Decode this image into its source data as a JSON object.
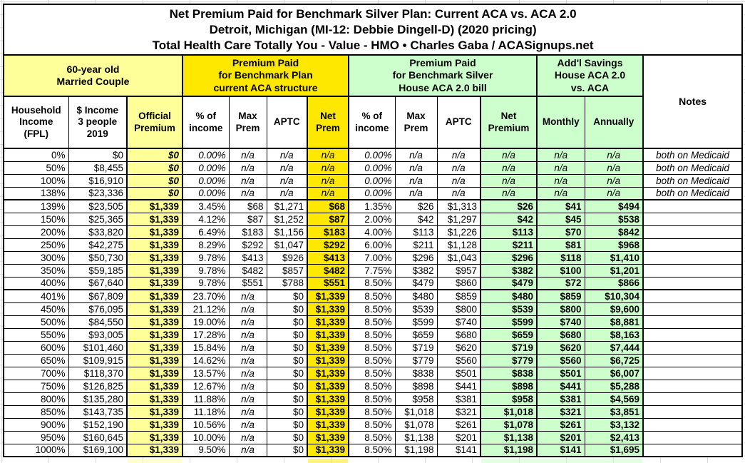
{
  "colors": {
    "pale_yellow": "#ffff99",
    "bright_yellow": "#ffe800",
    "light_green": "#ccffcc"
  },
  "chart_data": {
    "type": "table",
    "title": "Net Premium Paid for Benchmark Silver Plan: Current ACA vs. ACA 2.0",
    "subtitle": "Detroit, Michigan (MI-12: Debbie Dingell-D) (2020 pricing)",
    "source": "Total Health Care Totally You - Value - HMO • Charles Gaba / ACASignups.net",
    "column_groups": [
      "60-year old\nMarried Couple",
      "Premium Paid\nfor Benchmark Plan\ncurrent ACA structure",
      "Premium Paid\nfor Benchmark Silver\nHouse ACA 2.0 bill",
      "Add'l Savings\nHouse ACA 2.0\nvs. ACA"
    ],
    "columns": [
      "Household\nIncome\n(FPL)",
      "$ Income\n3 people\n2019",
      "Official\nPremium",
      "% of\nincome",
      "Max\nPrem",
      "APTC",
      "Net\nPrem",
      "% of\nincome",
      "Max\nPrem",
      "APTC",
      "Net\nPremium",
      "Monthly",
      "Annually",
      "Notes"
    ],
    "rows": [
      [
        "0%",
        "$0",
        "$0",
        "0.00%",
        "n/a",
        "n/a",
        "n/a",
        "0.00%",
        "n/a",
        "n/a",
        "n/a",
        "n/a",
        "n/a",
        "both on Medicaid"
      ],
      [
        "50%",
        "$8,455",
        "$0",
        "0.00%",
        "n/a",
        "n/a",
        "n/a",
        "0.00%",
        "n/a",
        "n/a",
        "n/a",
        "n/a",
        "n/a",
        "both on Medicaid"
      ],
      [
        "100%",
        "$16,910",
        "$0",
        "0.00%",
        "n/a",
        "n/a",
        "n/a",
        "0.00%",
        "n/a",
        "n/a",
        "n/a",
        "n/a",
        "n/a",
        "both on Medicaid"
      ],
      [
        "138%",
        "$23,336",
        "$0",
        "0.00%",
        "n/a",
        "n/a",
        "n/a",
        "0.00%",
        "n/a",
        "n/a",
        "n/a",
        "n/a",
        "n/a",
        "both on Medicaid"
      ],
      [
        "139%",
        "$23,505",
        "$1,339",
        "3.45%",
        "$68",
        "$1,271",
        "$68",
        "1.35%",
        "$26",
        "$1,313",
        "$26",
        "$41",
        "$494",
        ""
      ],
      [
        "150%",
        "$25,365",
        "$1,339",
        "4.12%",
        "$87",
        "$1,252",
        "$87",
        "2.00%",
        "$42",
        "$1,297",
        "$42",
        "$45",
        "$538",
        ""
      ],
      [
        "200%",
        "$33,820",
        "$1,339",
        "6.49%",
        "$183",
        "$1,156",
        "$183",
        "4.00%",
        "$113",
        "$1,226",
        "$113",
        "$70",
        "$842",
        ""
      ],
      [
        "250%",
        "$42,275",
        "$1,339",
        "8.29%",
        "$292",
        "$1,047",
        "$292",
        "6.00%",
        "$211",
        "$1,128",
        "$211",
        "$81",
        "$968",
        ""
      ],
      [
        "300%",
        "$50,730",
        "$1,339",
        "9.78%",
        "$413",
        "$926",
        "$413",
        "7.00%",
        "$296",
        "$1,043",
        "$296",
        "$118",
        "$1,410",
        ""
      ],
      [
        "350%",
        "$59,185",
        "$1,339",
        "9.78%",
        "$482",
        "$857",
        "$482",
        "7.75%",
        "$382",
        "$957",
        "$382",
        "$100",
        "$1,201",
        ""
      ],
      [
        "400%",
        "$67,640",
        "$1,339",
        "9.78%",
        "$551",
        "$788",
        "$551",
        "8.50%",
        "$479",
        "$860",
        "$479",
        "$72",
        "$866",
        ""
      ],
      [
        "401%",
        "$67,809",
        "$1,339",
        "23.70%",
        "n/a",
        "$0",
        "$1,339",
        "8.50%",
        "$480",
        "$859",
        "$480",
        "$859",
        "$10,304",
        ""
      ],
      [
        "450%",
        "$76,095",
        "$1,339",
        "21.12%",
        "n/a",
        "$0",
        "$1,339",
        "8.50%",
        "$539",
        "$800",
        "$539",
        "$800",
        "$9,600",
        ""
      ],
      [
        "500%",
        "$84,550",
        "$1,339",
        "19.00%",
        "n/a",
        "$0",
        "$1,339",
        "8.50%",
        "$599",
        "$740",
        "$599",
        "$740",
        "$8,881",
        ""
      ],
      [
        "550%",
        "$93,005",
        "$1,339",
        "17.28%",
        "n/a",
        "$0",
        "$1,339",
        "8.50%",
        "$659",
        "$680",
        "$659",
        "$680",
        "$8,163",
        ""
      ],
      [
        "600%",
        "$101,460",
        "$1,339",
        "15.84%",
        "n/a",
        "$0",
        "$1,339",
        "8.50%",
        "$719",
        "$620",
        "$719",
        "$620",
        "$7,444",
        ""
      ],
      [
        "650%",
        "$109,915",
        "$1,339",
        "14.62%",
        "n/a",
        "$0",
        "$1,339",
        "8.50%",
        "$779",
        "$560",
        "$779",
        "$560",
        "$6,725",
        ""
      ],
      [
        "700%",
        "$118,370",
        "$1,339",
        "13.57%",
        "n/a",
        "$0",
        "$1,339",
        "8.50%",
        "$838",
        "$501",
        "$838",
        "$501",
        "$6,007",
        ""
      ],
      [
        "750%",
        "$126,825",
        "$1,339",
        "12.67%",
        "n/a",
        "$0",
        "$1,339",
        "8.50%",
        "$898",
        "$441",
        "$898",
        "$441",
        "$5,288",
        ""
      ],
      [
        "800%",
        "$135,280",
        "$1,339",
        "11.88%",
        "n/a",
        "$0",
        "$1,339",
        "8.50%",
        "$958",
        "$381",
        "$958",
        "$381",
        "$4,569",
        ""
      ],
      [
        "850%",
        "$143,735",
        "$1,339",
        "11.18%",
        "n/a",
        "$0",
        "$1,339",
        "8.50%",
        "$1,018",
        "$321",
        "$1,018",
        "$321",
        "$3,851",
        ""
      ],
      [
        "900%",
        "$152,190",
        "$1,339",
        "10.56%",
        "n/a",
        "$0",
        "$1,339",
        "8.50%",
        "$1,078",
        "$261",
        "$1,078",
        "$261",
        "$3,132",
        ""
      ],
      [
        "950%",
        "$160,645",
        "$1,339",
        "10.00%",
        "n/a",
        "$0",
        "$1,339",
        "8.50%",
        "$1,138",
        "$201",
        "$1,138",
        "$201",
        "$2,413",
        ""
      ],
      [
        "1000%",
        "$169,100",
        "$1,339",
        "9.50%",
        "n/a",
        "$0",
        "$1,339",
        "8.50%",
        "$1,198",
        "$141",
        "$1,198",
        "$141",
        "$1,695",
        ""
      ]
    ],
    "layout_hints": {
      "section_break_after_rows": [
        "138%",
        "400%"
      ],
      "highlight_columns": {
        "pale_yellow": [
          "Official Premium"
        ],
        "bright_yellow": [
          "Net Prem"
        ],
        "light_green": [
          "Net Premium",
          "Monthly",
          "Annually"
        ]
      }
    }
  }
}
